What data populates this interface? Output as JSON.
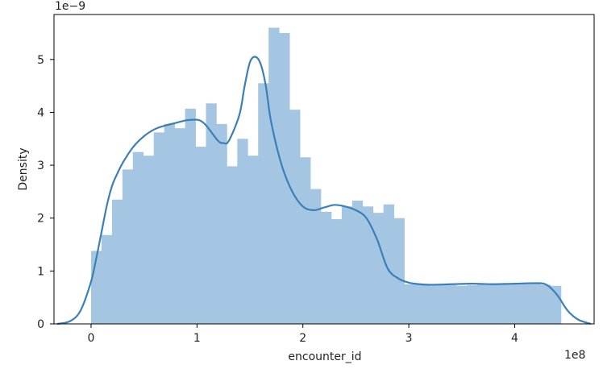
{
  "chart_data": {
    "type": "histogram-with-kde",
    "title": "",
    "xlabel": "encounter_id",
    "ylabel": "Density",
    "x_offset_label": "1e8",
    "y_offset_label": "1e−9",
    "xlim": [
      -0.35,
      4.75
    ],
    "ylim": [
      0,
      5.85
    ],
    "x_ticks": [
      0,
      1,
      2,
      3,
      4
    ],
    "x_tick_labels": [
      "0",
      "1",
      "2",
      "3",
      "4"
    ],
    "y_ticks": [
      0,
      1,
      2,
      3,
      4,
      5
    ],
    "y_tick_labels": [
      "0",
      "1",
      "2",
      "3",
      "4",
      "5"
    ],
    "grid": false,
    "legend": "none",
    "colors": {
      "bars": "#a5c6e2",
      "kde_line": "#3c7fb6",
      "axes": "#000000"
    },
    "bins": {
      "edges": [
        0.0,
        0.0493,
        0.0986,
        0.1479,
        0.1972,
        0.2465,
        0.2958,
        0.3451,
        0.3944,
        0.4437,
        0.493,
        0.5423,
        0.5916,
        0.6409,
        0.6902,
        0.7395,
        0.7888,
        0.8381,
        0.8874,
        0.9367,
        0.986,
        1.0353,
        1.0846,
        1.1339,
        1.1832,
        1.2325,
        1.2818,
        1.3311,
        1.3804,
        1.4297,
        1.479,
        1.5283,
        1.5776,
        1.6269,
        1.6762,
        1.7255,
        1.7748,
        1.8241,
        1.8734,
        1.9227,
        1.972,
        2.0213,
        2.0706,
        2.1199,
        2.1692,
        2.2185,
        2.2678,
        2.3171,
        2.3664,
        2.4157,
        2.465,
        2.5143,
        2.5636,
        2.6129,
        2.6622,
        2.7115,
        2.7608,
        2.8101,
        2.8594,
        2.9087,
        2.958,
        3.0073,
        3.0566,
        3.1059,
        3.1552,
        3.2045,
        3.2538,
        3.3031,
        3.3524,
        3.4017,
        3.451,
        3.5003,
        3.5496,
        3.5989,
        3.6482,
        3.6975,
        3.7468,
        3.7961,
        3.8454,
        3.8947,
        3.944,
        3.9933,
        4.0426,
        4.0919,
        4.1412,
        4.1905,
        4.2398,
        4.2891,
        4.3384,
        4.3877,
        4.437
      ],
      "density": [
        1.38,
        1.38,
        1.68,
        1.68,
        2.35,
        2.35,
        2.92,
        2.92,
        3.25,
        3.25,
        3.18,
        3.18,
        3.62,
        3.62,
        3.78,
        3.78,
        3.7,
        3.7,
        4.07,
        4.07,
        3.35,
        3.35,
        4.17,
        4.17,
        3.78,
        3.78,
        2.98,
        2.98,
        3.5,
        3.5,
        3.18,
        3.18,
        4.55,
        4.55,
        5.6,
        5.6,
        5.5,
        5.5,
        4.05,
        4.05,
        3.15,
        3.15,
        2.55,
        2.55,
        2.12,
        2.12,
        1.98,
        1.98,
        2.22,
        2.22,
        2.33,
        2.33,
        2.22,
        2.22,
        2.1,
        2.1,
        2.26,
        2.26,
        2.0,
        2.0,
        0.75,
        0.75,
        0.74,
        0.74,
        0.74,
        0.74,
        0.74,
        0.74,
        0.73,
        0.73,
        0.72,
        0.72,
        0.73,
        0.73,
        0.75,
        0.75,
        0.76,
        0.76,
        0.76,
        0.76,
        0.75,
        0.75,
        0.76,
        0.76,
        0.77,
        0.77,
        0.74,
        0.74,
        0.72,
        0.72
      ]
    },
    "kde": {
      "x": [
        -0.32,
        -0.2,
        -0.1,
        0.0,
        0.05,
        0.1,
        0.15,
        0.2,
        0.25,
        0.3,
        0.4,
        0.5,
        0.6,
        0.7,
        0.8,
        0.9,
        1.0,
        1.05,
        1.1,
        1.2,
        1.25,
        1.3,
        1.4,
        1.45,
        1.5,
        1.55,
        1.6,
        1.65,
        1.7,
        1.8,
        1.9,
        2.0,
        2.1,
        2.2,
        2.3,
        2.4,
        2.5,
        2.6,
        2.7,
        2.8,
        2.9,
        3.0,
        3.1,
        3.2,
        3.4,
        3.6,
        3.8,
        4.0,
        4.2,
        4.3,
        4.4,
        4.5,
        4.6,
        4.72
      ],
      "y": [
        0.0,
        0.05,
        0.25,
        0.8,
        1.25,
        1.75,
        2.25,
        2.62,
        2.85,
        3.05,
        3.35,
        3.55,
        3.68,
        3.75,
        3.8,
        3.85,
        3.86,
        3.82,
        3.72,
        3.46,
        3.42,
        3.46,
        3.95,
        4.5,
        4.95,
        5.05,
        4.92,
        4.5,
        3.82,
        3.0,
        2.5,
        2.22,
        2.15,
        2.2,
        2.25,
        2.22,
        2.15,
        2.0,
        1.6,
        1.05,
        0.86,
        0.78,
        0.75,
        0.74,
        0.75,
        0.76,
        0.75,
        0.76,
        0.77,
        0.74,
        0.55,
        0.25,
        0.08,
        0.0
      ]
    }
  }
}
